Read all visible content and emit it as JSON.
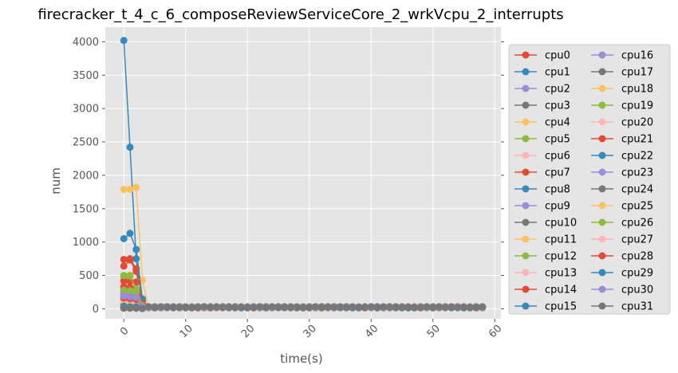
{
  "chart_data": {
    "type": "line",
    "title": "firecracker_t_4_c_6_composeReviewServiceCore_2_wrkVcpu_2_interrupts",
    "xlabel": "time(s)",
    "ylabel": "num",
    "xlim": [
      -3,
      61
    ],
    "ylim": [
      -150,
      4220
    ],
    "xticks": [
      0,
      10,
      20,
      30,
      40,
      50,
      60
    ],
    "yticks": [
      0,
      500,
      1000,
      1500,
      2000,
      2500,
      3000,
      3500,
      4000
    ],
    "grid": true,
    "legend_position": "right-outside",
    "legend_columns": 2,
    "colors": [
      "#E24A33",
      "#348ABD",
      "#988ED5",
      "#777777",
      "#FBC15E",
      "#8EBA42",
      "#FFB5B8"
    ],
    "series": [
      {
        "name": "cpu0",
        "peaks": [
          640,
          730,
          560,
          120
        ]
      },
      {
        "name": "cpu1",
        "peaks": [
          4020,
          2420,
          750,
          60
        ]
      },
      {
        "name": "cpu2",
        "peaks": [
          230,
          220,
          200,
          40
        ]
      },
      {
        "name": "cpu3",
        "peaks": [
          10,
          10,
          10,
          5
        ]
      },
      {
        "name": "cpu4",
        "peaks": [
          1790,
          1790,
          1820,
          430
        ]
      },
      {
        "name": "cpu5",
        "peaks": [
          480,
          500,
          300,
          60
        ]
      },
      {
        "name": "cpu6",
        "peaks": [
          120,
          110,
          100,
          30
        ]
      },
      {
        "name": "cpu7",
        "peaks": [
          740,
          750,
          600,
          100
        ]
      },
      {
        "name": "cpu8",
        "peaks": [
          1050,
          1130,
          890,
          150
        ]
      },
      {
        "name": "cpu9",
        "peaks": [
          250,
          240,
          220,
          50
        ]
      },
      {
        "name": "cpu10",
        "peaks": [
          10,
          10,
          10,
          5
        ]
      },
      {
        "name": "cpu11",
        "peaks": [
          70,
          60,
          50,
          20
        ]
      },
      {
        "name": "cpu12",
        "peaks": [
          320,
          310,
          290,
          60
        ]
      },
      {
        "name": "cpu13",
        "peaks": [
          370,
          360,
          330,
          60
        ]
      },
      {
        "name": "cpu14",
        "peaks": [
          420,
          410,
          400,
          70
        ]
      },
      {
        "name": "cpu15",
        "peaks": [
          150,
          140,
          130,
          30
        ]
      },
      {
        "name": "cpu16",
        "peaks": [
          260,
          250,
          200,
          40
        ]
      },
      {
        "name": "cpu17",
        "peaks": [
          10,
          10,
          10,
          5
        ]
      },
      {
        "name": "cpu18",
        "peaks": [
          90,
          80,
          70,
          20
        ]
      },
      {
        "name": "cpu19",
        "peaks": [
          500,
          490,
          300,
          50
        ]
      },
      {
        "name": "cpu20",
        "peaks": [
          180,
          170,
          160,
          30
        ]
      },
      {
        "name": "cpu21",
        "peaks": [
          330,
          320,
          200,
          40
        ]
      },
      {
        "name": "cpu22",
        "peaks": [
          60,
          50,
          40,
          10
        ]
      },
      {
        "name": "cpu23",
        "peaks": [
          210,
          200,
          180,
          30
        ]
      },
      {
        "name": "cpu24",
        "peaks": [
          10,
          10,
          10,
          5
        ]
      },
      {
        "name": "cpu25",
        "peaks": [
          100,
          90,
          80,
          20
        ]
      },
      {
        "name": "cpu26",
        "peaks": [
          280,
          270,
          250,
          40
        ]
      },
      {
        "name": "cpu27",
        "peaks": [
          140,
          130,
          120,
          20
        ]
      },
      {
        "name": "cpu28",
        "peaks": [
          160,
          150,
          140,
          30
        ]
      },
      {
        "name": "cpu29",
        "peaks": [
          40,
          30,
          30,
          10
        ]
      },
      {
        "name": "cpu30",
        "peaks": [
          190,
          180,
          170,
          30
        ]
      },
      {
        "name": "cpu31",
        "peaks": [
          10,
          10,
          10,
          5
        ]
      }
    ],
    "x_end": 58,
    "tail_level": 15
  }
}
